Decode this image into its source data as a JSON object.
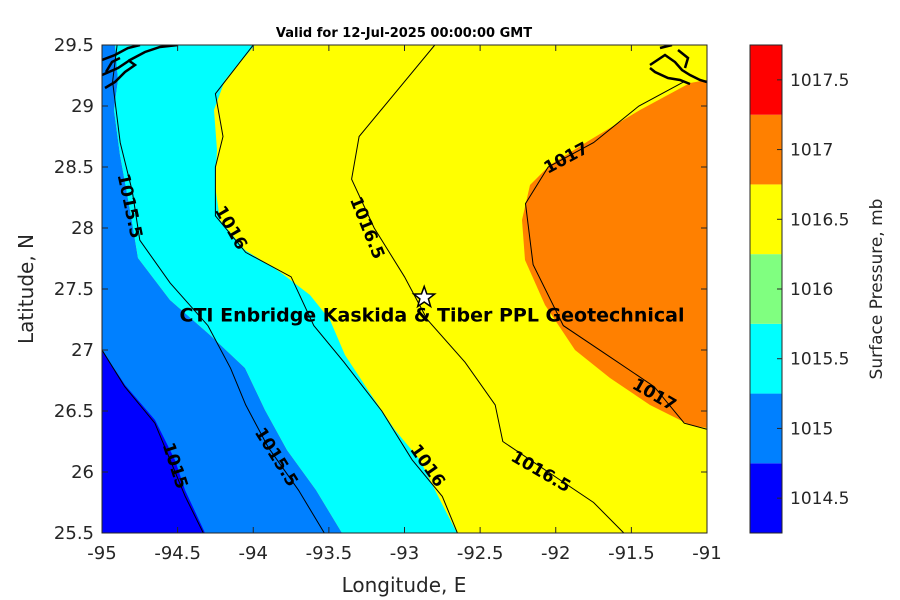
{
  "chart_data": {
    "type": "contour",
    "title": "Valid for 12-Jul-2025 00:00:00 GMT",
    "xlabel": "Longitude, E",
    "ylabel": "Latitude, N",
    "xlim": [
      -95,
      -91
    ],
    "ylim": [
      25.5,
      29.5
    ],
    "xticks": [
      "-95",
      "-94.5",
      "-94",
      "-93.5",
      "-93",
      "-92.5",
      "-92",
      "-91.5",
      "-91"
    ],
    "yticks": [
      "25.5",
      "26",
      "26.5",
      "27",
      "27.5",
      "28",
      "28.5",
      "29",
      "29.5"
    ],
    "colorbar": {
      "label": "Surface Pressure, mb",
      "levels": [
        "1014.5",
        "1015",
        "1015.5",
        "1016",
        "1016.5",
        "1017",
        "1017.5"
      ],
      "colors": [
        "#0000ff",
        "#0080ff",
        "#00ffff",
        "#80ff80",
        "#ffff00",
        "#ff8000",
        "#ff0000"
      ]
    },
    "contour_lines": [
      {
        "level": "1015",
        "points": [
          [
            -95.0,
            27.0
          ],
          [
            -94.85,
            26.7
          ],
          [
            -94.65,
            26.4
          ],
          [
            -94.55,
            26.1
          ],
          [
            -94.45,
            25.8
          ],
          [
            -94.33,
            25.5
          ]
        ]
      },
      {
        "level": "1015.5",
        "points": [
          [
            -94.9,
            29.5
          ],
          [
            -94.93,
            29.2
          ],
          [
            -94.88,
            28.7
          ],
          [
            -94.8,
            28.3
          ],
          [
            -94.75,
            27.9
          ],
          [
            -94.55,
            27.55
          ],
          [
            -94.3,
            27.2
          ],
          [
            -94.15,
            26.85
          ],
          [
            -94.05,
            26.55
          ],
          [
            -93.9,
            26.2
          ],
          [
            -93.7,
            25.85
          ],
          [
            -93.53,
            25.5
          ]
        ]
      },
      {
        "level": "1016",
        "points": [
          [
            -94.0,
            29.5
          ],
          [
            -94.25,
            29.1
          ],
          [
            -94.2,
            28.75
          ],
          [
            -94.25,
            28.5
          ],
          [
            -94.25,
            28.1
          ],
          [
            -94.05,
            27.8
          ],
          [
            -93.75,
            27.6
          ],
          [
            -93.6,
            27.2
          ],
          [
            -93.4,
            26.9
          ],
          [
            -93.15,
            26.5
          ],
          [
            -92.95,
            26.1
          ],
          [
            -92.75,
            25.8
          ],
          [
            -92.65,
            25.5
          ]
        ]
      },
      {
        "level": "1016.5",
        "points": [
          [
            -92.8,
            29.5
          ],
          [
            -93.1,
            29.05
          ],
          [
            -93.3,
            28.75
          ],
          [
            -93.35,
            28.4
          ],
          [
            -93.2,
            28.0
          ],
          [
            -93.0,
            27.6
          ],
          [
            -92.85,
            27.25
          ],
          [
            -92.6,
            26.9
          ],
          [
            -92.4,
            26.55
          ],
          [
            -92.35,
            26.25
          ],
          [
            -92.05,
            26.0
          ],
          [
            -91.75,
            25.75
          ],
          [
            -91.55,
            25.5
          ]
        ]
      },
      {
        "level": "1017",
        "points": [
          [
            -91.15,
            29.2
          ],
          [
            -91.45,
            29.0
          ],
          [
            -91.75,
            28.7
          ],
          [
            -92.05,
            28.5
          ],
          [
            -92.2,
            28.2
          ],
          [
            -92.15,
            27.7
          ],
          [
            -91.95,
            27.2
          ],
          [
            -91.65,
            26.95
          ],
          [
            -91.35,
            26.7
          ],
          [
            -91.15,
            26.4
          ],
          [
            -91.0,
            26.35
          ]
        ]
      }
    ],
    "contour_labels": [
      {
        "text": "1015",
        "x": -94.52,
        "y": 26.05,
        "angle": 72
      },
      {
        "text": "1015.5",
        "x": -94.82,
        "y": 28.18,
        "angle": 78
      },
      {
        "text": "1015.5",
        "x": -93.85,
        "y": 26.12,
        "angle": 58
      },
      {
        "text": "1016",
        "x": -94.15,
        "y": 28.0,
        "angle": 60
      },
      {
        "text": "1016",
        "x": -92.85,
        "y": 26.05,
        "angle": 55
      },
      {
        "text": "1016.5",
        "x": -93.25,
        "y": 28.0,
        "angle": 68
      },
      {
        "text": "1016.5",
        "x": -92.1,
        "y": 26.0,
        "angle": 30
      },
      {
        "text": "1017",
        "x": -91.93,
        "y": 28.57,
        "angle": -28
      },
      {
        "text": "1017",
        "x": -91.35,
        "y": 26.63,
        "angle": 30
      }
    ],
    "site": {
      "name": "CTI Enbridge  Kaskida & Tiber PPL Geotechnical",
      "lon": -92.87,
      "lat": 27.43
    }
  }
}
